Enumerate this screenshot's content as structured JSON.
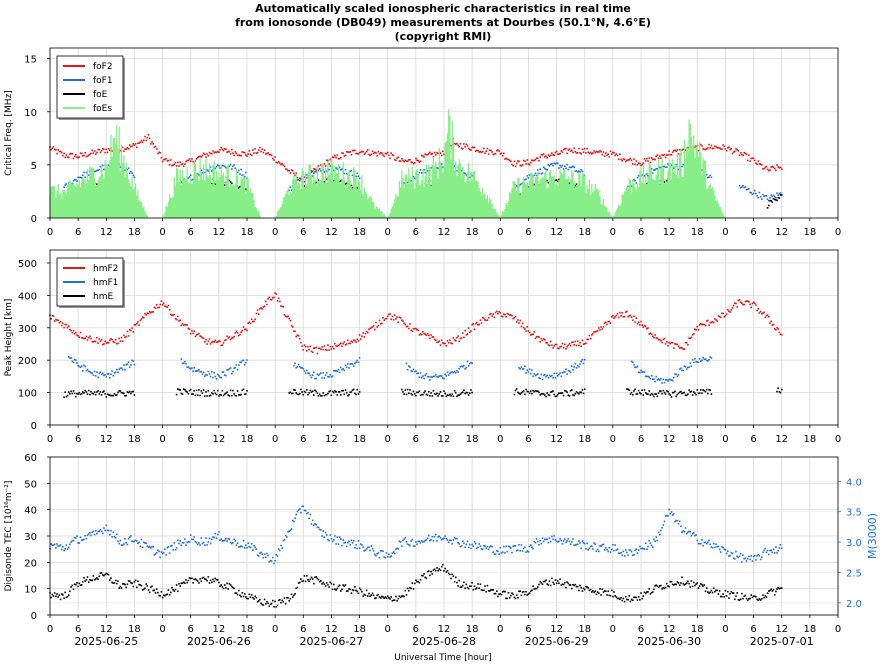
{
  "title": {
    "line1": "Automatically scaled ionospheric characteristics in real time",
    "line2": "from ionosonde (DB049) measurements at Dourbes (50.1°N, 4.6°E)",
    "line3": "(copyright RMI)"
  },
  "xlabel": "Universal Time [hour]",
  "date_labels": [
    "2025-06-25",
    "2025-06-26",
    "2025-06-27",
    "2025-06-28",
    "2025-06-29",
    "2025-06-30",
    "2025-07-01"
  ],
  "colors": {
    "foF2": "#ee1111",
    "foF1": "#1f6fe0",
    "foE": "#000000",
    "foEs": "#88ee88",
    "blue": "#1f6fe0",
    "red": "#ee1111",
    "black": "#000000",
    "grid": "#d9d9d9"
  },
  "chart_data": [
    {
      "type": "scatter",
      "panel": "critical-frequency",
      "ylabel": "Critical Freq. [MHz]",
      "ylim": [
        0,
        16
      ],
      "yticks": [
        0,
        5,
        10,
        15
      ],
      "xlim_hours": [
        0,
        168
      ],
      "x_tick_labels": [
        "0",
        "6",
        "12",
        "18",
        "0",
        "6",
        "12",
        "18",
        "0",
        "6",
        "12",
        "18",
        "0",
        "6",
        "12",
        "18",
        "0",
        "6",
        "12",
        "18",
        "0",
        "6",
        "12",
        "18",
        "0",
        "6",
        "12",
        "18",
        "0"
      ],
      "legend": [
        "foF2",
        "foF1",
        "foE",
        "foEs"
      ],
      "legend_position": "top-left",
      "grid": true,
      "series": [
        {
          "name": "foF2",
          "x": [
            0,
            3,
            6,
            9,
            12,
            15,
            18,
            21,
            24,
            27,
            30,
            33,
            36,
            39,
            42,
            45,
            48,
            51,
            54,
            57,
            60,
            63,
            66,
            69,
            72,
            75,
            78,
            81,
            84,
            87,
            90,
            93,
            96,
            99,
            102,
            105,
            108,
            111,
            114,
            117,
            120,
            123,
            126,
            129,
            132,
            135,
            138,
            141,
            144,
            147,
            150,
            153,
            156
          ],
          "y": [
            6.6,
            5.9,
            5.8,
            6.1,
            6.4,
            6.5,
            6.8,
            7.6,
            5.5,
            5.0,
            5.3,
            5.9,
            6.4,
            6.2,
            6.0,
            6.4,
            5.6,
            4.4,
            3.6,
            4.6,
            5.5,
            6.0,
            6.3,
            6.1,
            6.0,
            5.3,
            5.4,
            5.9,
            6.2,
            6.9,
            6.6,
            6.3,
            6.2,
            5.1,
            5.2,
            5.8,
            6.0,
            6.4,
            6.3,
            6.1,
            6.0,
            5.5,
            5.2,
            5.6,
            6.1,
            6.3,
            6.6,
            6.7,
            6.6,
            6.1,
            5.4,
            4.5,
            4.8
          ]
        },
        {
          "name": "foF1",
          "x": [
            3,
            6,
            9,
            12,
            15,
            18,
            27,
            30,
            33,
            36,
            39,
            42,
            51,
            54,
            57,
            60,
            63,
            66,
            75,
            78,
            81,
            84,
            87,
            90,
            99,
            102,
            105,
            108,
            111,
            114,
            123,
            126,
            129,
            132,
            135,
            138,
            141,
            147,
            150,
            153,
            156
          ],
          "y": [
            2.8,
            3.8,
            4.4,
            4.8,
            4.9,
            4.1,
            2.8,
            3.8,
            4.5,
            4.9,
            4.8,
            4.0,
            2.7,
            3.8,
            4.3,
            4.8,
            4.4,
            3.9,
            2.9,
            4.1,
            4.6,
            4.9,
            4.7,
            3.9,
            2.9,
            3.9,
            4.5,
            5.0,
            4.7,
            4.1,
            2.8,
            3.9,
            4.5,
            4.9,
            4.8,
            4.5,
            3.8,
            3.0,
            2.4,
            1.8,
            2.3
          ]
        },
        {
          "name": "foE",
          "x": [
            3,
            6,
            9,
            12,
            15,
            18,
            27,
            30,
            33,
            36,
            39,
            42,
            51,
            54,
            57,
            60,
            63,
            66,
            75,
            78,
            81,
            84,
            87,
            90,
            99,
            102,
            105,
            108,
            111,
            114,
            123,
            126,
            129,
            132,
            135,
            138,
            141,
            153,
            156
          ],
          "y": [
            1.5,
            2.5,
            3.1,
            3.4,
            3.1,
            2.3,
            1.5,
            2.6,
            3.2,
            3.5,
            3.2,
            2.4,
            1.6,
            2.7,
            3.3,
            3.5,
            3.2,
            2.5,
            1.6,
            2.7,
            3.3,
            3.5,
            3.2,
            2.5,
            1.6,
            2.7,
            3.3,
            3.6,
            3.2,
            2.5,
            1.6,
            2.7,
            3.3,
            3.5,
            3.3,
            2.6,
            1.8,
            1.2,
            2.3
          ]
        },
        {
          "name": "foEs",
          "x": [
            0,
            3,
            6,
            9,
            12,
            14,
            15,
            18,
            21,
            24,
            27,
            30,
            33,
            36,
            39,
            42,
            45,
            48,
            51,
            54,
            57,
            60,
            63,
            66,
            69,
            72,
            75,
            78,
            81,
            84,
            85,
            87,
            90,
            93,
            96,
            99,
            102,
            105,
            108,
            111,
            114,
            117,
            120,
            123,
            126,
            129,
            132,
            135,
            136,
            138,
            141,
            144
          ],
          "y": [
            2.8,
            2.6,
            3.5,
            4.4,
            5.2,
            8.4,
            6.8,
            3.0,
            0.0,
            0.0,
            4.0,
            4.7,
            5.0,
            4.5,
            4.2,
            3.4,
            0.0,
            0.0,
            3.0,
            4.1,
            4.6,
            4.8,
            4.4,
            4.0,
            1.3,
            0.0,
            3.8,
            4.2,
            4.5,
            6.2,
            9.0,
            5.4,
            4.3,
            2.6,
            0.0,
            3.2,
            3.6,
            4.0,
            4.2,
            4.0,
            3.6,
            2.4,
            0.0,
            3.2,
            4.1,
            4.6,
            5.0,
            5.6,
            9.4,
            7.0,
            2.8,
            0.0
          ]
        }
      ]
    },
    {
      "type": "scatter",
      "panel": "peak-height",
      "ylabel": "Peak Height [km]",
      "ylim": [
        0,
        540
      ],
      "yticks": [
        0,
        100,
        200,
        300,
        400,
        500
      ],
      "xlim_hours": [
        0,
        168
      ],
      "x_tick_labels": [
        "0",
        "6",
        "12",
        "18",
        "0",
        "6",
        "12",
        "18",
        "0",
        "6",
        "12",
        "18",
        "0",
        "6",
        "12",
        "18",
        "0",
        "6",
        "12",
        "18",
        "0",
        "6",
        "12",
        "18",
        "0",
        "6",
        "12",
        "18",
        "0"
      ],
      "legend": [
        "hmF2",
        "hmF1",
        "hmE"
      ],
      "legend_position": "top-left",
      "grid": true,
      "series": [
        {
          "name": "hmF2",
          "x": [
            0,
            3,
            6,
            9,
            12,
            15,
            18,
            21,
            24,
            27,
            30,
            33,
            36,
            39,
            42,
            45,
            48,
            51,
            54,
            57,
            60,
            63,
            66,
            69,
            72,
            75,
            78,
            81,
            84,
            87,
            90,
            93,
            96,
            99,
            102,
            105,
            108,
            111,
            114,
            117,
            120,
            123,
            126,
            129,
            132,
            135,
            138,
            141,
            144,
            147,
            150,
            153,
            156
          ],
          "y": [
            335,
            310,
            280,
            265,
            255,
            260,
            300,
            345,
            380,
            330,
            290,
            260,
            250,
            275,
            300,
            360,
            405,
            320,
            240,
            230,
            240,
            250,
            270,
            300,
            340,
            320,
            290,
            270,
            250,
            265,
            300,
            330,
            345,
            330,
            290,
            260,
            240,
            245,
            255,
            290,
            330,
            345,
            310,
            275,
            250,
            235,
            300,
            320,
            340,
            380,
            370,
            330,
            280
          ]
        },
        {
          "name": "hmF1",
          "x": [
            4,
            6,
            9,
            12,
            15,
            18,
            28,
            30,
            33,
            36,
            39,
            42,
            52,
            54,
            57,
            60,
            63,
            66,
            76,
            78,
            81,
            84,
            87,
            90,
            100,
            102,
            105,
            108,
            111,
            114,
            124,
            126,
            129,
            132,
            135,
            138,
            141
          ],
          "y": [
            210,
            185,
            160,
            150,
            170,
            195,
            200,
            175,
            160,
            150,
            170,
            200,
            190,
            165,
            150,
            155,
            175,
            200,
            180,
            160,
            145,
            150,
            170,
            195,
            185,
            165,
            150,
            155,
            170,
            200,
            190,
            160,
            140,
            135,
            175,
            200,
            205
          ]
        },
        {
          "name": "hmE",
          "x": [
            3,
            6,
            9,
            12,
            15,
            18,
            27,
            30,
            33,
            36,
            39,
            42,
            51,
            54,
            57,
            60,
            63,
            66,
            75,
            78,
            81,
            84,
            87,
            90,
            99,
            102,
            105,
            108,
            111,
            114,
            123,
            126,
            129,
            132,
            135,
            138,
            141,
            155,
            156
          ],
          "y": [
            95,
            97,
            97,
            96,
            97,
            100,
            103,
            101,
            99,
            98,
            99,
            101,
            103,
            100,
            98,
            97,
            99,
            102,
            102,
            99,
            97,
            96,
            98,
            102,
            103,
            100,
            97,
            96,
            98,
            103,
            104,
            100,
            97,
            96,
            98,
            102,
            100,
            110,
            105
          ]
        }
      ]
    },
    {
      "type": "scatter",
      "panel": "tec-and-m3000",
      "ylabel": "Digisonde TEC [10¹⁶m⁻²]",
      "ylim": [
        0,
        60
      ],
      "yticks": [
        0,
        10,
        20,
        30,
        40,
        50,
        60
      ],
      "y2label": "M(3000)",
      "y2lim": [
        1.8,
        4.4
      ],
      "y2ticks": [
        2.0,
        2.5,
        3.0,
        3.5,
        4.0
      ],
      "xlim_hours": [
        0,
        168
      ],
      "x_tick_labels": [
        "0",
        "6",
        "12",
        "18",
        "0",
        "6",
        "12",
        "18",
        "0",
        "6",
        "12",
        "18",
        "0",
        "6",
        "12",
        "18",
        "0",
        "6",
        "12",
        "18",
        "0",
        "6",
        "12",
        "18",
        "0",
        "6",
        "12",
        "18",
        "0"
      ],
      "grid": true,
      "series": [
        {
          "name": "Digisonde TEC",
          "x": [
            0,
            3,
            6,
            9,
            12,
            15,
            18,
            21,
            24,
            27,
            30,
            33,
            36,
            39,
            42,
            45,
            48,
            51,
            54,
            57,
            60,
            63,
            66,
            69,
            72,
            75,
            78,
            81,
            84,
            87,
            90,
            93,
            96,
            99,
            102,
            105,
            108,
            111,
            114,
            117,
            120,
            123,
            126,
            129,
            132,
            135,
            138,
            141,
            144,
            147,
            150,
            153,
            156
          ],
          "y": [
            8,
            7,
            12,
            14,
            15,
            11,
            12,
            10,
            8,
            10,
            13,
            14,
            12,
            10,
            7,
            5,
            4,
            6,
            14,
            13,
            11,
            10,
            9,
            7,
            6,
            7,
            12,
            16,
            18,
            12,
            11,
            10,
            8,
            7,
            9,
            12,
            13,
            11,
            10,
            9,
            8,
            6,
            7,
            10,
            12,
            13,
            11,
            9,
            8,
            7,
            6,
            8,
            10
          ]
        },
        {
          "name": "M(3000)",
          "x": [
            0,
            3,
            6,
            9,
            12,
            15,
            18,
            21,
            24,
            27,
            30,
            33,
            36,
            39,
            42,
            45,
            48,
            51,
            54,
            57,
            60,
            63,
            66,
            69,
            72,
            75,
            78,
            81,
            84,
            87,
            90,
            93,
            96,
            99,
            102,
            105,
            108,
            111,
            114,
            117,
            120,
            123,
            126,
            129,
            132,
            135,
            138,
            141,
            144,
            147,
            150,
            153,
            156
          ],
          "y": [
            2.95,
            2.9,
            3.05,
            3.1,
            3.25,
            3.0,
            3.05,
            2.9,
            2.8,
            2.95,
            3.05,
            3.0,
            3.1,
            3.0,
            2.95,
            2.8,
            2.7,
            3.2,
            3.6,
            3.2,
            3.05,
            3.0,
            2.95,
            2.85,
            2.75,
            3.0,
            3.0,
            3.05,
            3.1,
            3.0,
            2.95,
            2.9,
            2.85,
            2.9,
            2.9,
            3.05,
            3.05,
            3.0,
            2.95,
            2.9,
            2.9,
            2.8,
            2.9,
            3.0,
            3.5,
            3.2,
            3.05,
            2.95,
            2.85,
            2.75,
            2.7,
            2.85,
            2.9
          ]
        }
      ]
    }
  ]
}
